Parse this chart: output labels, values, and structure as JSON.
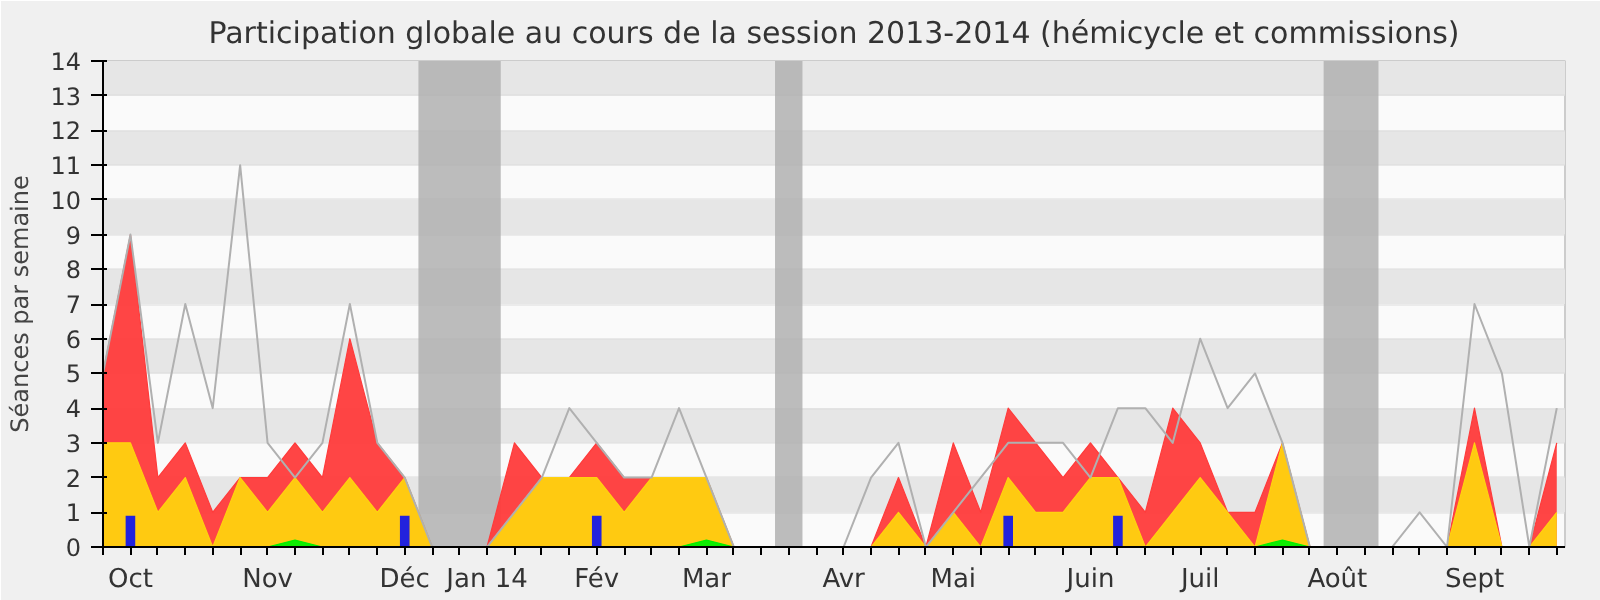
{
  "chart_data": {
    "type": "area",
    "title": "Participation globale au cours de la session 2013-2014 (hémicycle et commissions)",
    "ylabel": "Séances par semaine",
    "categories": [
      null,
      "Oct",
      null,
      null,
      null,
      null,
      "Nov",
      null,
      null,
      null,
      null,
      "Déc",
      null,
      null,
      "Jan 14",
      null,
      null,
      null,
      "Fév",
      null,
      null,
      null,
      "Mar",
      null,
      null,
      null,
      null,
      "Avr",
      null,
      null,
      null,
      "Mai",
      null,
      null,
      null,
      null,
      "Juin",
      null,
      null,
      null,
      "Juil",
      null,
      null,
      null,
      null,
      "Août",
      null,
      null,
      null,
      null,
      "Sept",
      null,
      null,
      null
    ],
    "series": [
      {
        "type": "line",
        "color": "#b0b0b0",
        "values": [
          5,
          9,
          3,
          7,
          4,
          11,
          3,
          2,
          3,
          7,
          3,
          2,
          0,
          0,
          0,
          1,
          2,
          4,
          3,
          2,
          2,
          4,
          2,
          0,
          0,
          0,
          0,
          0,
          2,
          3,
          0,
          1,
          2,
          3,
          3,
          3,
          2,
          4,
          4,
          3,
          6,
          4,
          5,
          3,
          0,
          0,
          0,
          0,
          1,
          0,
          7,
          5,
          0,
          4
        ]
      },
      {
        "color": "#ff3b3b",
        "values": [
          5,
          9,
          2,
          3,
          1,
          2,
          2,
          3,
          2,
          6,
          3,
          2,
          0,
          0,
          0,
          3,
          2,
          2,
          3,
          2,
          2,
          2,
          2,
          0,
          0,
          0,
          0,
          0,
          0,
          2,
          0,
          3,
          1,
          4,
          3,
          2,
          3,
          2,
          1,
          4,
          3,
          1,
          1,
          3,
          0,
          0,
          0,
          0,
          0,
          0,
          4,
          0,
          0,
          3
        ]
      },
      {
        "color": "#ffd20f",
        "values": [
          3,
          3,
          1,
          2,
          0,
          2,
          1,
          2,
          1,
          2,
          1,
          2,
          0,
          0,
          0,
          1,
          2,
          2,
          2,
          1,
          2,
          2,
          2,
          0,
          0,
          0,
          0,
          0,
          0,
          1,
          0,
          1,
          0,
          2,
          1,
          1,
          2,
          2,
          0,
          1,
          2,
          1,
          0,
          3,
          0,
          0,
          0,
          0,
          0,
          0,
          3,
          0,
          0,
          1
        ]
      },
      {
        "color": "#00ee00",
        "values": [
          0,
          0,
          0,
          0,
          0,
          0,
          0,
          0.2,
          0,
          0,
          0,
          0,
          0,
          0,
          0,
          0,
          0,
          0,
          0,
          0,
          0,
          0,
          0.2,
          0,
          0,
          0,
          0,
          0,
          0,
          0,
          0,
          0,
          0,
          0,
          0,
          0,
          0,
          0,
          0,
          0,
          0,
          0,
          0,
          0.2,
          0,
          0,
          0,
          0,
          0,
          0,
          0,
          0,
          0,
          0
        ]
      },
      {
        "type": "bar",
        "color": "#2222dd",
        "values": [
          0,
          0.9,
          0,
          0,
          0,
          0,
          0,
          0,
          0,
          0,
          0,
          0.9,
          0,
          0,
          0,
          0,
          0,
          0,
          0.9,
          0,
          0,
          0,
          0,
          0,
          0,
          0,
          0,
          0,
          0,
          0,
          0,
          0,
          0,
          0.9,
          0,
          0,
          0,
          0.9,
          0,
          0,
          0,
          0,
          0,
          0,
          0,
          0,
          0,
          0,
          0,
          0,
          0,
          0,
          0,
          0
        ]
      }
    ],
    "ylim": [
      0,
      14
    ],
    "yticks": [
      0,
      1,
      2,
      3,
      4,
      5,
      6,
      7,
      8,
      9,
      10,
      11,
      12,
      13,
      14
    ],
    "grid": "y"
  }
}
